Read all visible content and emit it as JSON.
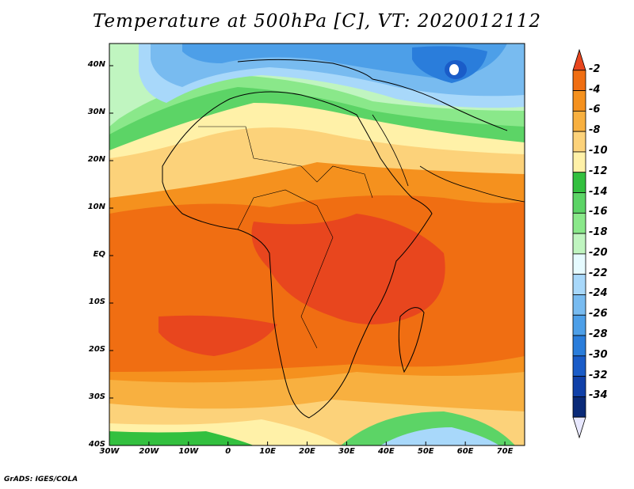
{
  "title": "Temperature at 500hPa [C], VT: 2020012112",
  "credit": "GrADS: IGES/COLA",
  "map": {
    "lat_labels": [
      "40N",
      "30N",
      "20N",
      "10N",
      "EQ",
      "10S",
      "20S",
      "30S",
      "40S"
    ],
    "lon_labels": [
      "30W",
      "20W",
      "10W",
      "0",
      "10E",
      "20E",
      "30E",
      "40E",
      "50E",
      "60E",
      "70E"
    ]
  },
  "colorbar": {
    "labels": [
      "-2",
      "-4",
      "-6",
      "-8",
      "-10",
      "-12",
      "-14",
      "-16",
      "-18",
      "-20",
      "-22",
      "-24",
      "-26",
      "-28",
      "-30",
      "-32",
      "-34"
    ],
    "colors": [
      "#e8461e",
      "#f06e12",
      "#f5911e",
      "#f8b040",
      "#fcd27a",
      "#fff1a8",
      "#33c03f",
      "#5cd466",
      "#8ae88a",
      "#c0f5c0",
      "#e6fbff",
      "#a8d8fa",
      "#78bbf0",
      "#4d9fe8",
      "#2a7ddb",
      "#1a5cc8",
      "#1040a8",
      "#0a2a78",
      "#e8e8ff"
    ]
  }
}
